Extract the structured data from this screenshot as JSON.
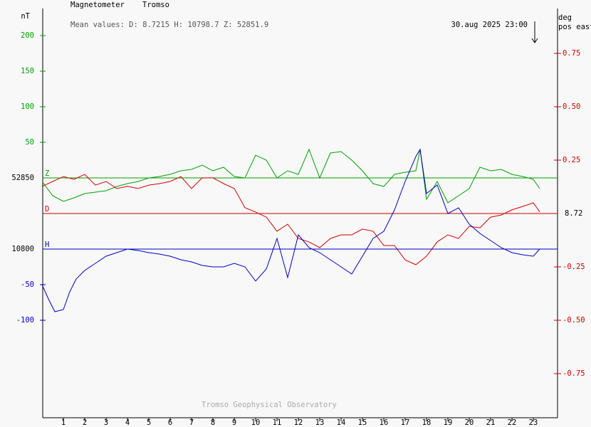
{
  "chart_data": {
    "type": "line",
    "title": "Magnetometer",
    "station": "Tromso",
    "left_unit": "nT",
    "right_unit": [
      "deg",
      "pos east"
    ],
    "mean_values": "Mean values:  D: 8.7215   H: 10798.7   Z: 52851.9",
    "timestamp": "30.aug 2025 23:00",
    "footer": "Tromso Geophysical Observatory",
    "xlim": [
      0,
      24.1
    ],
    "xticks": [
      1,
      2,
      3,
      4,
      5,
      6,
      7,
      8,
      9,
      10,
      11,
      12,
      13,
      14,
      15,
      16,
      17,
      18,
      19,
      20,
      21,
      22,
      23
    ],
    "series": [
      {
        "name": "Z",
        "color": "#00a000",
        "axis": "y",
        "ylim": [
          52513,
          53085
        ],
        "baseline": 52850,
        "yticks": [
          {
            "value": 53050,
            "label": "200"
          },
          {
            "value": 53000,
            "label": "150"
          },
          {
            "value": 52950,
            "label": "100"
          },
          {
            "value": 52900,
            "label": "50"
          },
          52850
        ],
        "x": [
          0,
          0.5,
          1,
          1.5,
          2,
          2.5,
          3,
          3.5,
          4,
          4.5,
          5,
          5.5,
          6,
          6.5,
          7,
          7.5,
          8,
          8.5,
          9,
          9.5,
          10,
          10.5,
          11,
          11.5,
          12,
          12.5,
          13,
          13.5,
          14,
          14.5,
          15,
          15.5,
          16,
          16.5,
          17,
          17.5,
          17.7,
          18,
          18.5,
          19,
          19.5,
          20,
          20.5,
          21,
          21.5,
          22,
          22.5,
          23,
          23.3
        ],
        "values": [
          52845,
          52825,
          52817,
          52822,
          52828,
          52830,
          52832,
          52838,
          52842,
          52845,
          52850,
          52852,
          52855,
          52860,
          52862,
          52868,
          52860,
          52865,
          52852,
          52850,
          52882,
          52875,
          52850,
          52860,
          52855,
          52890,
          52850,
          52885,
          52887,
          52875,
          52860,
          52842,
          52838,
          52855,
          52858,
          52860,
          52890,
          52820,
          52845,
          52815,
          52825,
          52835,
          52865,
          52860,
          52862,
          52855,
          52852,
          52848,
          52835
        ]
      },
      {
        "name": "D",
        "color": "#d00000",
        "axis": "y2",
        "ylim": [
          7.7633,
          9.67
        ],
        "baseline": 8.72,
        "yticks": [
          {
            "value": 9.47,
            "label": "0.75"
          },
          {
            "value": 9.22,
            "label": "0.50"
          },
          {
            "value": 8.97,
            "label": "0.25"
          },
          8.72,
          {
            "value": 8.47,
            "label": "-0.25"
          },
          {
            "value": 8.22,
            "label": "-0.50"
          },
          {
            "value": 7.97,
            "label": "-0.75"
          }
        ],
        "x": [
          0,
          0.5,
          1,
          1.5,
          2,
          2.5,
          3,
          3.5,
          4,
          4.5,
          5,
          5.5,
          6,
          6.5,
          7,
          7.5,
          8,
          8.5,
          9,
          9.5,
          10,
          10.5,
          11,
          11.5,
          12,
          12.5,
          13,
          13.5,
          14,
          14.5,
          15,
          15.5,
          16,
          16.5,
          17,
          17.5,
          18,
          18.5,
          19,
          19.5,
          20,
          20.5,
          21,
          21.5,
          22,
          22.5,
          23,
          23.3
        ],
        "values": [
          8.847,
          8.87,
          8.893,
          8.88,
          8.903,
          8.853,
          8.87,
          8.837,
          8.847,
          8.837,
          8.853,
          8.86,
          8.87,
          8.893,
          8.837,
          8.887,
          8.887,
          8.86,
          8.837,
          8.747,
          8.727,
          8.703,
          8.637,
          8.67,
          8.603,
          8.587,
          8.56,
          8.603,
          8.62,
          8.62,
          8.647,
          8.637,
          8.57,
          8.57,
          8.503,
          8.48,
          8.52,
          8.587,
          8.62,
          8.603,
          8.66,
          8.653,
          8.703,
          8.713,
          8.737,
          8.753,
          8.77,
          8.727
        ]
      },
      {
        "name": "H",
        "color": "#0000c0",
        "axis": "y",
        "ylim": [
          10563,
          11135
        ],
        "baseline": 10800,
        "yticks": [
          10800,
          {
            "value": 10750,
            "label": "-50"
          },
          {
            "value": 10700,
            "label": "-100"
          }
        ],
        "x": [
          0,
          0.3,
          0.6,
          1,
          1.3,
          1.6,
          2,
          2.5,
          3,
          3.5,
          4,
          4.5,
          5,
          5.5,
          6,
          6.5,
          7,
          7.5,
          8,
          8.5,
          9,
          9.5,
          10,
          10.5,
          11,
          11.5,
          12,
          12.5,
          13,
          13.5,
          14,
          14.5,
          15,
          15.5,
          16,
          16.5,
          17,
          17.5,
          17.7,
          18,
          18.5,
          19,
          19.5,
          20,
          20.5,
          21,
          21.5,
          22,
          22.5,
          23,
          23.3
        ],
        "values": [
          10750,
          10730,
          10712,
          10715,
          10740,
          10758,
          10770,
          10780,
          10790,
          10795,
          10800,
          10798,
          10795,
          10793,
          10790,
          10785,
          10782,
          10777,
          10775,
          10775,
          10780,
          10775,
          10755,
          10772,
          10815,
          10760,
          10820,
          10802,
          10795,
          10785,
          10775,
          10765,
          10790,
          10815,
          10825,
          10855,
          10895,
          10930,
          10940,
          10878,
          10890,
          10850,
          10858,
          10835,
          10822,
          10812,
          10802,
          10795,
          10792,
          10790,
          10800
        ]
      }
    ]
  }
}
